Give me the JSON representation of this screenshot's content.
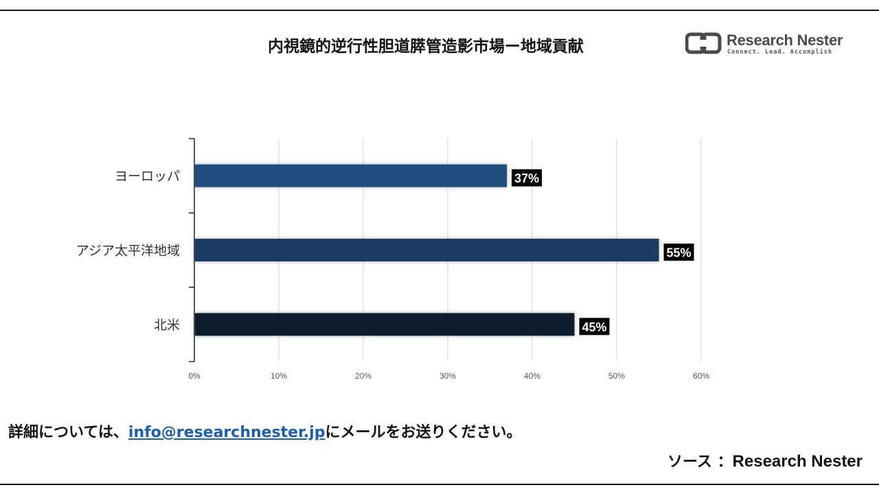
{
  "chart_data": {
    "type": "bar",
    "orientation": "horizontal",
    "title": "内視鏡的逆行性胆道膵管造影市場ー地域貢献",
    "categories": [
      "ヨーロッパ",
      "アジア太平洋地域",
      "北米"
    ],
    "values": [
      37,
      55,
      45
    ],
    "data_labels": [
      "37%",
      "55%",
      "45%"
    ],
    "bar_colors": [
      "#1f4e7d",
      "#1a3a63",
      "#0f1c2e"
    ],
    "xlim": [
      0,
      60
    ],
    "xticks": [
      "0%",
      "10%",
      "20%",
      "30%",
      "40%",
      "50%",
      "60%"
    ],
    "xlabel": "",
    "ylabel": "",
    "grid": "vertical",
    "legend": "none"
  },
  "logo": {
    "name": "Research Nester",
    "tagline": "Connect. Lead. Accomplish",
    "color": "#4a4a4a"
  },
  "footer": {
    "prefix": "詳細については、",
    "email": "info@researchnester.jp",
    "suffix": "にメールをお送りください。"
  },
  "source": {
    "label": "ソース ：",
    "name": "Research Nester"
  }
}
